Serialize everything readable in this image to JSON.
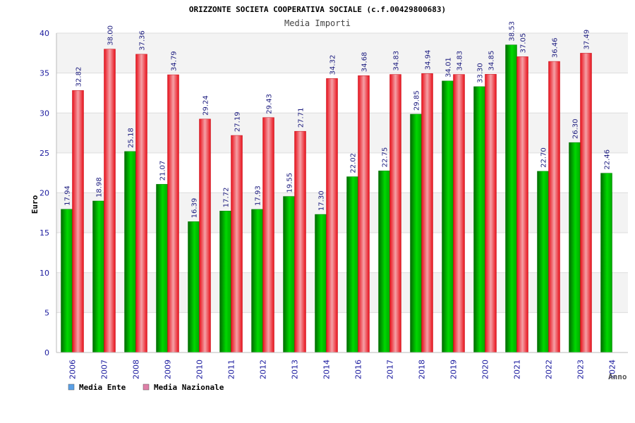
{
  "chart_data": {
    "type": "bar",
    "title": "ORIZZONTE SOCIETA COOPERATIVA SOCIALE (c.f.00429800683)",
    "subtitle": "Media Importi",
    "xlabel": "Anno",
    "ylabel": "Euro",
    "ylim": [
      0,
      40
    ],
    "yticks": [
      "0",
      "5",
      "10",
      "15",
      "20",
      "25",
      "30",
      "35",
      "40"
    ],
    "grid": true,
    "legend_position": "bottom-left",
    "categories": [
      "2006",
      "2007",
      "2008",
      "2009",
      "2010",
      "2011",
      "2012",
      "2013",
      "2014",
      "2016",
      "2017",
      "2018",
      "2019",
      "2020",
      "2021",
      "2022",
      "2023",
      "2024"
    ],
    "series": [
      {
        "name": "Media Ente",
        "values": [
          17.94,
          18.98,
          25.18,
          21.07,
          16.39,
          17.72,
          17.93,
          19.55,
          17.3,
          22.02,
          22.75,
          29.85,
          34.01,
          33.3,
          38.53,
          22.7,
          26.3,
          22.46
        ],
        "labels": [
          "17.94",
          "18.98",
          "25.18",
          "21.07",
          "16.39",
          "17.72",
          "17.93",
          "19.55",
          "17.30",
          "22.02",
          "22.75",
          "29.85",
          "34.01",
          "33.30",
          "38.53",
          "22.70",
          "26.30",
          "22.46"
        ],
        "color": "#00b400",
        "legend_color": "#5aa0e6"
      },
      {
        "name": "Media Nazionale",
        "values": [
          32.82,
          38.0,
          37.36,
          34.79,
          29.24,
          27.19,
          29.43,
          27.71,
          34.32,
          34.68,
          34.83,
          34.94,
          34.83,
          34.85,
          37.05,
          36.46,
          37.49,
          null
        ],
        "labels": [
          "32.82",
          "38.00",
          "37.36",
          "34.79",
          "29.24",
          "27.19",
          "29.43",
          "27.71",
          "34.32",
          "34.68",
          "34.83",
          "34.94",
          "34.83",
          "34.85",
          "37.05",
          "36.46",
          "37.49",
          null
        ],
        "color": "#ee1c24",
        "legend_color": "#e080a8"
      }
    ]
  }
}
